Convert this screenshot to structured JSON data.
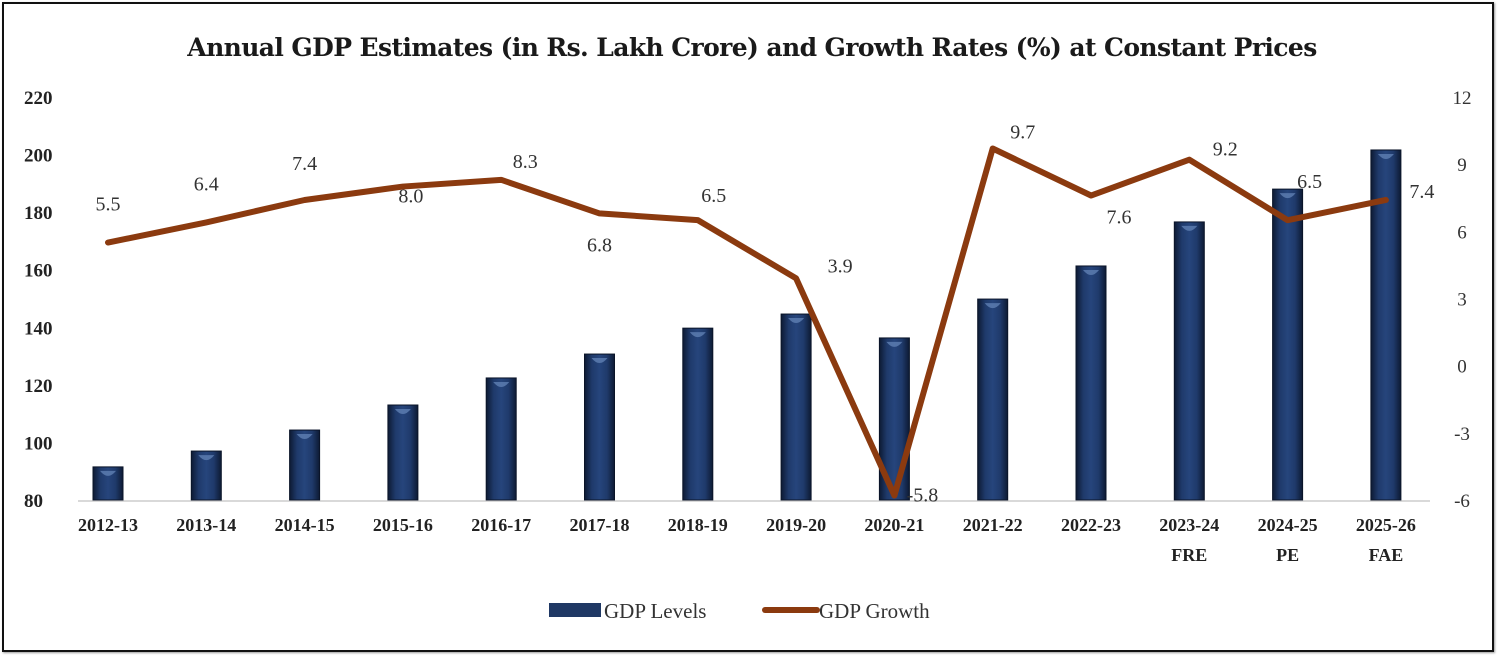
{
  "chart_data": {
    "type": "bar+line",
    "title": "Annual GDP Estimates (in Rs. Lakh Crore) and Growth Rates (%) at Constant Prices",
    "categories": [
      [
        "2012-13"
      ],
      [
        "2013-14"
      ],
      [
        "2014-15"
      ],
      [
        "2015-16"
      ],
      [
        "2016-17"
      ],
      [
        "2017-18"
      ],
      [
        "2018-19"
      ],
      [
        "2019-20"
      ],
      [
        "2020-21"
      ],
      [
        "2021-22"
      ],
      [
        "2022-23"
      ],
      [
        "2023-24",
        "FRE"
      ],
      [
        "2024-25",
        "PE"
      ],
      [
        "2025-26",
        "FAE"
      ]
    ],
    "series": [
      {
        "name": "GDP Levels",
        "type": "bar",
        "axis": "left",
        "color": "#1f3864",
        "values": [
          91.5,
          97.0,
          104.3,
          113.0,
          122.4,
          130.7,
          139.7,
          144.6,
          136.3,
          149.8,
          161.3,
          176.6,
          188.0,
          201.6
        ]
      },
      {
        "name": "GDP Growth",
        "type": "line",
        "axis": "right",
        "color": "#8b3a0f",
        "values": [
          5.5,
          6.4,
          7.4,
          8.0,
          8.3,
          6.8,
          6.5,
          3.9,
          -5.8,
          9.7,
          7.6,
          9.2,
          6.5,
          7.4
        ],
        "labels": [
          "5.5",
          "6.4",
          "7.4",
          "8.0",
          "8.3",
          "6.8",
          "6.5",
          "3.9",
          "-5.8",
          "9.7",
          "7.6",
          "9.2",
          "6.5",
          "7.4"
        ]
      }
    ],
    "left_axis": {
      "ylim": [
        80,
        220
      ],
      "ticks": [
        "220",
        "200",
        "180",
        "160",
        "140",
        "120",
        "100",
        "80"
      ],
      "tick_values": [
        220,
        200,
        180,
        160,
        140,
        120,
        100,
        80
      ]
    },
    "right_axis": {
      "ylim": [
        -6,
        12
      ],
      "ticks": [
        "12",
        "9",
        "6",
        "3",
        "0",
        "-3",
        "-6"
      ],
      "tick_values": [
        12,
        9,
        6,
        3,
        0,
        -3,
        -6
      ]
    },
    "xlabel": "",
    "ylabel": "",
    "grid": false,
    "legend": {
      "placement": "bottom-center",
      "items": [
        "GDP Levels",
        "GDP Growth"
      ]
    }
  }
}
